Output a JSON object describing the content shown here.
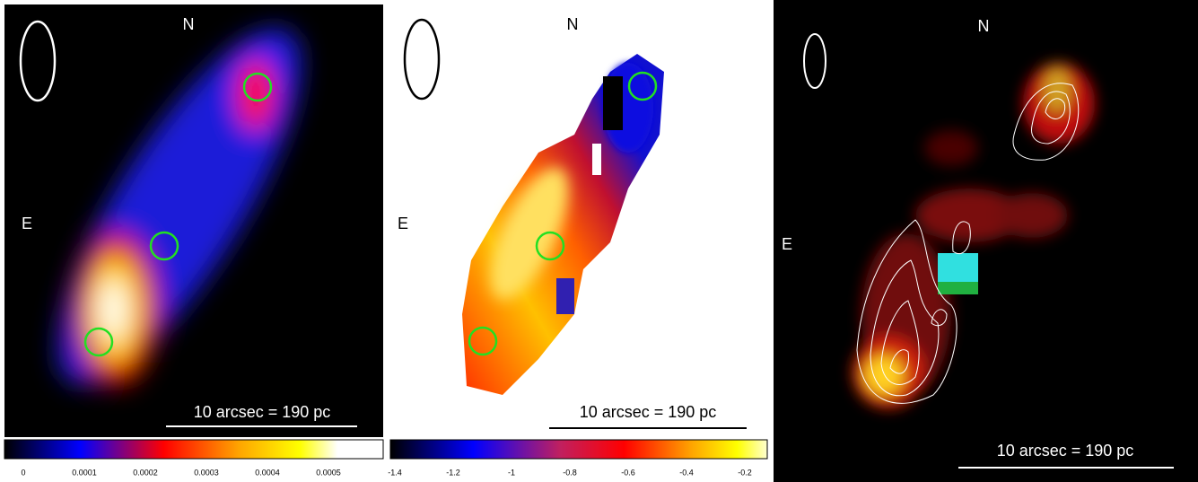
{
  "panels": [
    {
      "north": "N",
      "east": "E",
      "scale_bar": "10 arcsec = 190 pc",
      "colorbar_ticks": [
        0,
        0.0001,
        0.0002,
        0.0003,
        0.0004,
        0.0005
      ]
    },
    {
      "north": "N",
      "east": "E",
      "scale_bar": "10 arcsec = 190 pc",
      "colorbar_ticks": [
        -1.4,
        -1.2,
        -1,
        -0.8,
        -0.6,
        -0.4,
        -0.2
      ]
    },
    {
      "north": "N",
      "east": "E",
      "scale_bar": "10 arcsec = 190 pc"
    }
  ]
}
